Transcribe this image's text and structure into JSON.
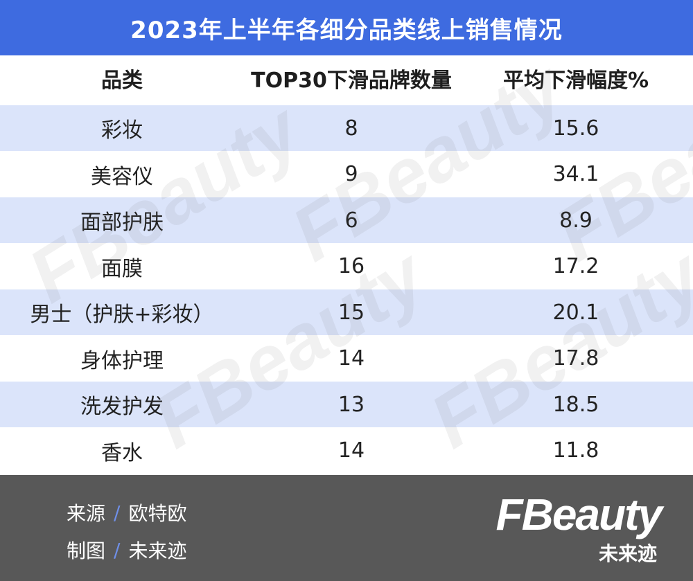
{
  "title": "2023年上半年各细分品类线上销售情况",
  "chart_data": {
    "type": "table",
    "columns": [
      "品类",
      "TOP30下滑品牌数量",
      "平均下滑幅度%"
    ],
    "rows": [
      {
        "category": "彩妆",
        "count": "8",
        "avg_drop": "15.6"
      },
      {
        "category": "美容仪",
        "count": "9",
        "avg_drop": "34.1"
      },
      {
        "category": "面部护肤",
        "count": "6",
        "avg_drop": "8.9"
      },
      {
        "category": "面膜",
        "count": "16",
        "avg_drop": "17.2"
      },
      {
        "category": "男士（护肤+彩妆）",
        "count": "15",
        "avg_drop": "20.1"
      },
      {
        "category": "身体护理",
        "count": "14",
        "avg_drop": "17.8"
      },
      {
        "category": "洗发护发",
        "count": "13",
        "avg_drop": "18.5"
      },
      {
        "category": "香水",
        "count": "14",
        "avg_drop": "11.8"
      }
    ]
  },
  "footer": {
    "source_label": "来源",
    "source_value": "欧特欧",
    "credit_label": "制图",
    "credit_value": "未来迹",
    "separator": "/"
  },
  "logo": {
    "word": "FBeauty",
    "sub": "未来迹"
  },
  "colors": {
    "title_bg": "#3e6be0",
    "row_alt": "#dbe4fa",
    "footer_bg": "#585858"
  }
}
